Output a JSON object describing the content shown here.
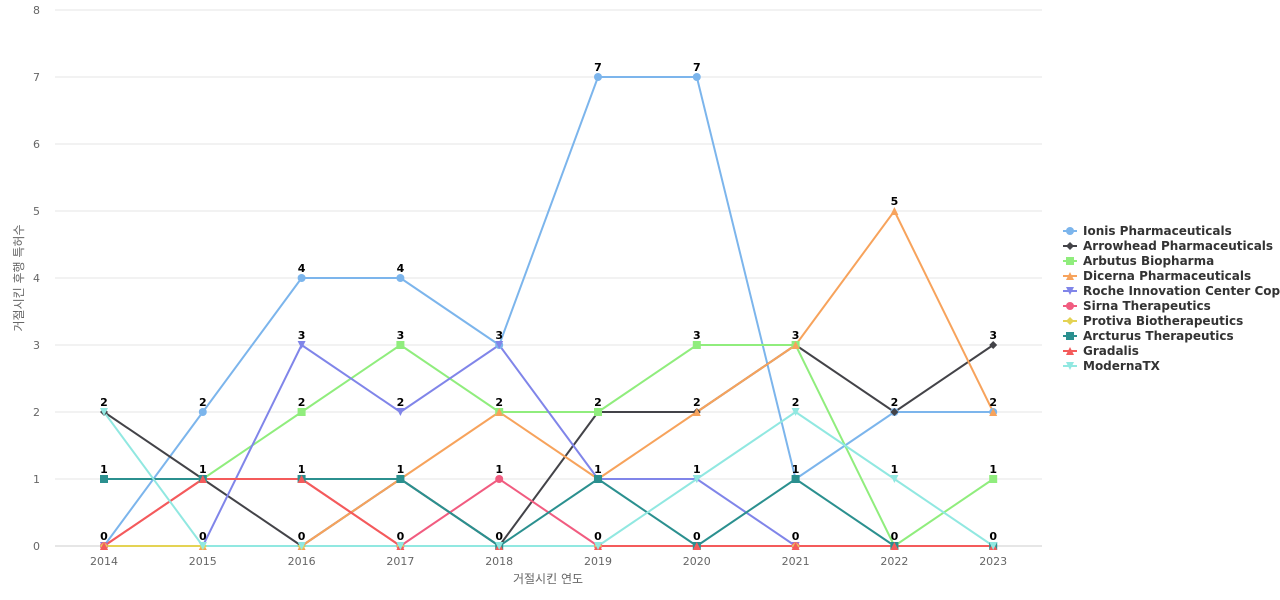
{
  "chart_data": {
    "type": "line",
    "title": "",
    "xlabel": "거절시킨 연도",
    "ylabel": "거절시킨 후행 특허수",
    "categories": [
      "2014",
      "2015",
      "2016",
      "2017",
      "2018",
      "2019",
      "2020",
      "2021",
      "2022",
      "2023"
    ],
    "ylim": [
      0,
      8
    ],
    "yticks": [
      0,
      1,
      2,
      3,
      4,
      5,
      6,
      7,
      8
    ],
    "grid": true,
    "legend_position": "right",
    "series": [
      {
        "name": "Ionis Pharmaceuticals",
        "color": "#7cb5ec",
        "marker": "circle",
        "values": [
          0,
          2,
          4,
          4,
          3,
          7,
          7,
          1,
          2,
          2
        ]
      },
      {
        "name": "Arrowhead Pharmaceuticals",
        "color": "#434348",
        "marker": "diamond",
        "values": [
          2,
          1,
          0,
          1,
          0,
          2,
          2,
          3,
          2,
          3
        ]
      },
      {
        "name": "Arbutus Biopharma",
        "color": "#90ed7d",
        "marker": "square",
        "values": [
          1,
          1,
          2,
          3,
          2,
          2,
          3,
          3,
          0,
          1
        ]
      },
      {
        "name": "Dicerna Pharmaceuticals",
        "color": "#f7a35c",
        "marker": "triangle",
        "values": [
          0,
          0,
          0,
          1,
          2,
          1,
          2,
          3,
          5,
          2
        ]
      },
      {
        "name": "Roche Innovation Center Cop...",
        "color": "#8085e9",
        "marker": "triangle-down",
        "values": [
          0,
          0,
          3,
          2,
          3,
          1,
          1,
          0,
          0,
          0
        ]
      },
      {
        "name": "Sirna Therapeutics",
        "color": "#f15c80",
        "marker": "circle",
        "values": [
          0,
          1,
          1,
          0,
          1,
          0,
          0,
          0,
          0,
          0
        ]
      },
      {
        "name": "Protiva Biotherapeutics",
        "color": "#e4d354",
        "marker": "diamond",
        "values": [
          0,
          0,
          0,
          0,
          0,
          0,
          0,
          0,
          0,
          0
        ]
      },
      {
        "name": "Arcturus Therapeutics",
        "color": "#2b908f",
        "marker": "square",
        "values": [
          1,
          1,
          1,
          1,
          0,
          1,
          0,
          1,
          0,
          0
        ]
      },
      {
        "name": "Gradalis",
        "color": "#f45b5b",
        "marker": "triangle",
        "values": [
          0,
          1,
          1,
          0,
          0,
          0,
          0,
          0,
          0,
          0
        ]
      },
      {
        "name": "ModernaTX",
        "color": "#91e8e1",
        "marker": "triangle-down",
        "values": [
          2,
          0,
          0,
          0,
          0,
          0,
          1,
          2,
          1,
          0
        ]
      }
    ],
    "data_labels": [
      {
        "category": "2014",
        "value": 2,
        "text": "2"
      },
      {
        "category": "2014",
        "value": 1,
        "text": "1"
      },
      {
        "category": "2014",
        "value": 0,
        "text": "0"
      },
      {
        "category": "2015",
        "value": 2,
        "text": "2"
      },
      {
        "category": "2015",
        "value": 1,
        "text": "1"
      },
      {
        "category": "2015",
        "value": 0,
        "text": "0"
      },
      {
        "category": "2016",
        "value": 4,
        "text": "4"
      },
      {
        "category": "2016",
        "value": 3,
        "text": "3"
      },
      {
        "category": "2016",
        "value": 2,
        "text": "2"
      },
      {
        "category": "2016",
        "value": 1,
        "text": "1"
      },
      {
        "category": "2016",
        "value": 0,
        "text": "0"
      },
      {
        "category": "2017",
        "value": 4,
        "text": "4"
      },
      {
        "category": "2017",
        "value": 3,
        "text": "3"
      },
      {
        "category": "2017",
        "value": 2,
        "text": "2"
      },
      {
        "category": "2017",
        "value": 1,
        "text": "1"
      },
      {
        "category": "2017",
        "value": 0,
        "text": "0"
      },
      {
        "category": "2018",
        "value": 3,
        "text": "3"
      },
      {
        "category": "2018",
        "value": 2,
        "text": "2"
      },
      {
        "category": "2018",
        "value": 1,
        "text": "1"
      },
      {
        "category": "2018",
        "value": 0,
        "text": "0"
      },
      {
        "category": "2019",
        "value": 7,
        "text": "7"
      },
      {
        "category": "2019",
        "value": 2,
        "text": "2"
      },
      {
        "category": "2019",
        "value": 1,
        "text": "1"
      },
      {
        "category": "2019",
        "value": 0,
        "text": "0"
      },
      {
        "category": "2020",
        "value": 7,
        "text": "7"
      },
      {
        "category": "2020",
        "value": 3,
        "text": "3"
      },
      {
        "category": "2020",
        "value": 2,
        "text": "2"
      },
      {
        "category": "2020",
        "value": 1,
        "text": "1"
      },
      {
        "category": "2020",
        "value": 0,
        "text": "0"
      },
      {
        "category": "2021",
        "value": 3,
        "text": "3"
      },
      {
        "category": "2021",
        "value": 2,
        "text": "2"
      },
      {
        "category": "2021",
        "value": 1,
        "text": "1"
      },
      {
        "category": "2021",
        "value": 0,
        "text": "0"
      },
      {
        "category": "2022",
        "value": 5,
        "text": "5"
      },
      {
        "category": "2022",
        "value": 2,
        "text": "2"
      },
      {
        "category": "2022",
        "value": 1,
        "text": "1"
      },
      {
        "category": "2022",
        "value": 0,
        "text": "0"
      },
      {
        "category": "2023",
        "value": 3,
        "text": "3"
      },
      {
        "category": "2023",
        "value": 2,
        "text": "2"
      },
      {
        "category": "2023",
        "value": 1,
        "text": "1"
      },
      {
        "category": "2023",
        "value": 0,
        "text": "0"
      }
    ]
  }
}
